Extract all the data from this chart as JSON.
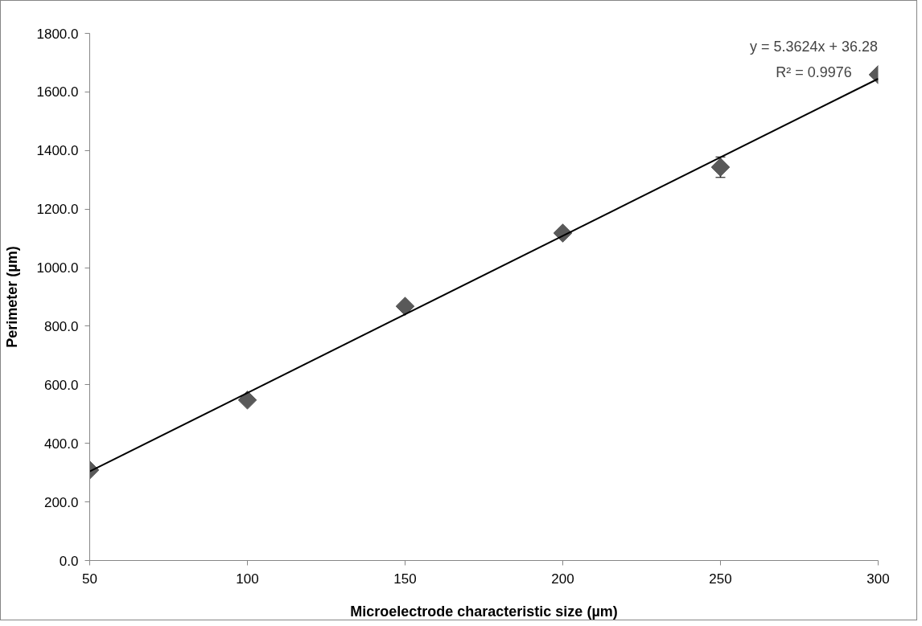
{
  "chart_data": {
    "type": "scatter",
    "xlabel": "Microelectrode characteristic size (µm)",
    "ylabel": "Perimeter (µm)",
    "xlim": [
      50,
      300
    ],
    "xticks": [
      50,
      100,
      150,
      200,
      250,
      300
    ],
    "ylim": [
      0,
      1800
    ],
    "yticks": [
      {
        "value": 0,
        "label": "0.0"
      },
      {
        "value": 200,
        "label": "200.0"
      },
      {
        "value": 400,
        "label": "400.0"
      },
      {
        "value": 600,
        "label": "600.0"
      },
      {
        "value": 800,
        "label": "800.0"
      },
      {
        "value": 1000,
        "label": "1000.0"
      },
      {
        "value": 1200,
        "label": "1200.0"
      },
      {
        "value": 1400,
        "label": "1400.0"
      },
      {
        "value": 1600,
        "label": "1600.0"
      },
      {
        "value": 1800,
        "label": "1800.0"
      }
    ],
    "grid": false,
    "marker": "diamond",
    "series": [
      {
        "color": "#595959",
        "x": [
          50,
          100,
          150,
          200,
          250,
          300
        ],
        "values": [
          309,
          548,
          868,
          1118,
          1343,
          1659
        ],
        "errors": [
          null,
          null,
          null,
          null,
          35,
          null
        ]
      },
      {
        "type": "line",
        "marker": "none",
        "color": "#000000",
        "x": [
          50,
          300
        ],
        "values": [
          304,
          1645
        ]
      }
    ],
    "annotations": [
      "y = 5.3624x + 36.28",
      "R² = 0.9976"
    ]
  }
}
